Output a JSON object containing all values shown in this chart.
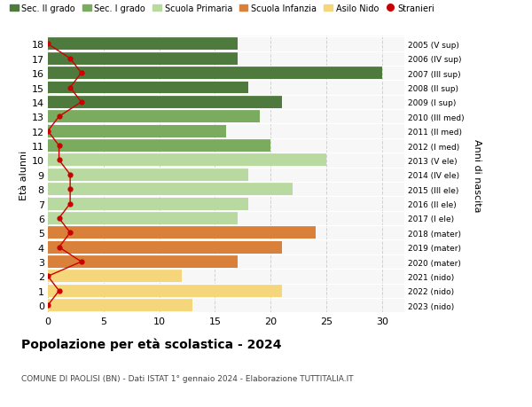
{
  "ages": [
    18,
    17,
    16,
    15,
    14,
    13,
    12,
    11,
    10,
    9,
    8,
    7,
    6,
    5,
    4,
    3,
    2,
    1,
    0
  ],
  "years": [
    "2005 (V sup)",
    "2006 (IV sup)",
    "2007 (III sup)",
    "2008 (II sup)",
    "2009 (I sup)",
    "2010 (III med)",
    "2011 (II med)",
    "2012 (I med)",
    "2013 (V ele)",
    "2014 (IV ele)",
    "2015 (III ele)",
    "2016 (II ele)",
    "2017 (I ele)",
    "2018 (mater)",
    "2019 (mater)",
    "2020 (mater)",
    "2021 (nido)",
    "2022 (nido)",
    "2023 (nido)"
  ],
  "bar_values": [
    17,
    17,
    30,
    18,
    21,
    19,
    16,
    20,
    25,
    18,
    22,
    18,
    17,
    24,
    21,
    17,
    12,
    21,
    13
  ],
  "bar_colors": [
    "#4e7a3e",
    "#4e7a3e",
    "#4e7a3e",
    "#4e7a3e",
    "#4e7a3e",
    "#7aab5f",
    "#7aab5f",
    "#7aab5f",
    "#b8d9a0",
    "#b8d9a0",
    "#b8d9a0",
    "#b8d9a0",
    "#b8d9a0",
    "#d9813a",
    "#d9813a",
    "#d9813a",
    "#f5d67a",
    "#f5d67a",
    "#f5d67a"
  ],
  "stranieri_values": [
    0,
    2,
    3,
    2,
    3,
    1,
    0,
    1,
    1,
    2,
    2,
    2,
    1,
    2,
    1,
    3,
    0,
    1,
    0
  ],
  "stranieri_color": "#cc0000",
  "legend_labels": [
    "Sec. II grado",
    "Sec. I grado",
    "Scuola Primaria",
    "Scuola Infanzia",
    "Asilo Nido",
    "Stranieri"
  ],
  "legend_colors": [
    "#4e7a3e",
    "#7aab5f",
    "#b8d9a0",
    "#d9813a",
    "#f5d67a",
    "#cc0000"
  ],
  "ylabel": "Età alunni",
  "ylabel2": "Anni di nascita",
  "title": "Popolazione per età scolastica - 2024",
  "subtitle": "COMUNE DI PAOLISI (BN) - Dati ISTAT 1° gennaio 2024 - Elaborazione TUTTITALIA.IT",
  "xlim": [
    0,
    32
  ],
  "xticks": [
    0,
    5,
    10,
    15,
    20,
    25,
    30
  ],
  "bg_color": "#f7f7f7",
  "grid_color": "#d0d0d0"
}
